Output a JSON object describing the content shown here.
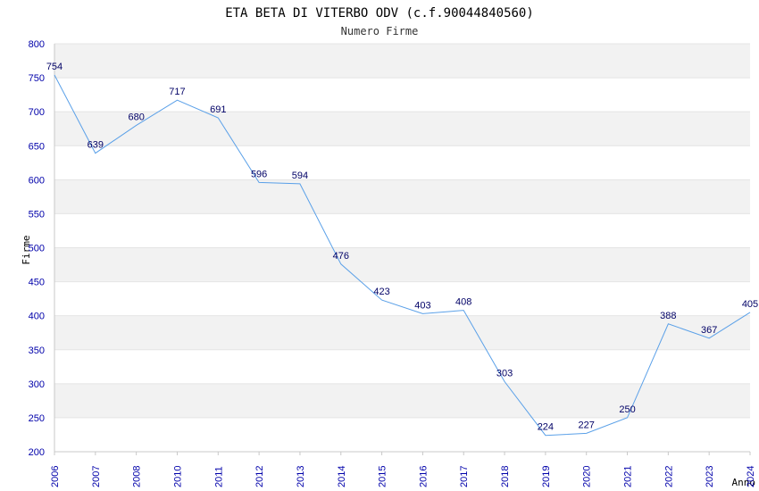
{
  "chart_data": {
    "type": "line",
    "title": "ETA BETA DI VITERBO ODV (c.f.90044840560)",
    "subtitle": "Numero Firme",
    "xlabel": "Anno",
    "ylabel": "Firme",
    "x": [
      "2006",
      "2007",
      "2008",
      "2010",
      "2011",
      "2012",
      "2013",
      "2014",
      "2015",
      "2016",
      "2017",
      "2018",
      "2019",
      "2020",
      "2021",
      "2022",
      "2023",
      "2024"
    ],
    "series": [
      {
        "values": [
          754,
          639,
          680,
          717,
          691,
          596,
          594,
          476,
          423,
          403,
          408,
          303,
          224,
          227,
          250,
          388,
          367,
          405
        ]
      }
    ],
    "ylim": [
      200,
      800
    ],
    "yticks": [
      "200",
      "250",
      "300",
      "350",
      "400",
      "450",
      "500",
      "550",
      "600",
      "650",
      "700",
      "750",
      "800"
    ],
    "grid": true,
    "colors": {
      "line": "#5aa0e8",
      "band": "#f2f2f2",
      "gridline": "#e4e4e4",
      "axis": "#c8c8c8",
      "tick_label": "#0000aa",
      "data_label": "#000066"
    }
  }
}
